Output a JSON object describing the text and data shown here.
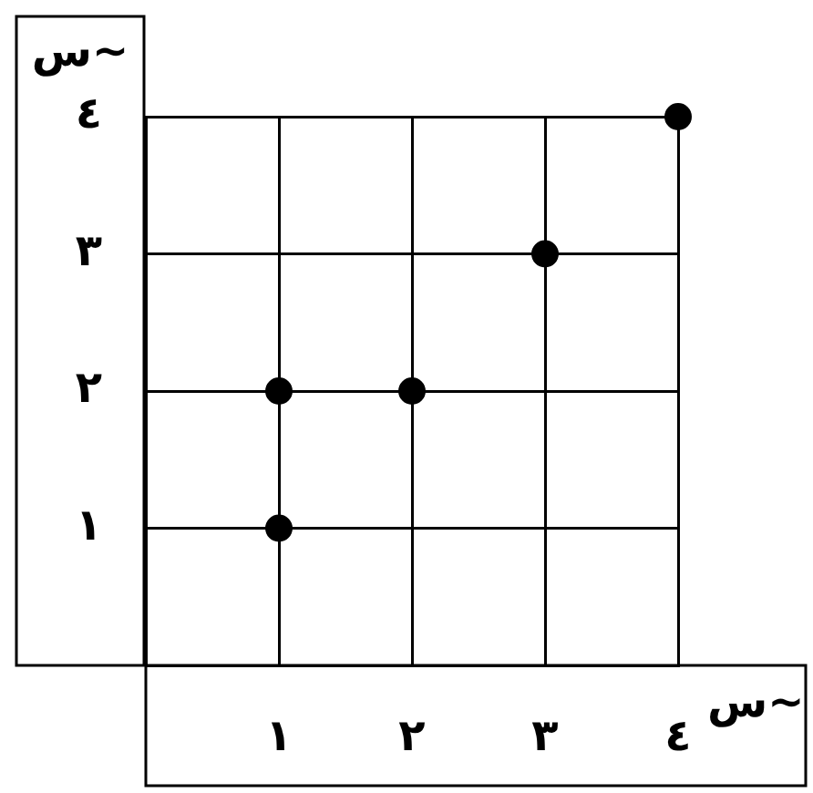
{
  "chart_data": {
    "type": "scatter",
    "xlabel": "س~",
    "ylabel": "س~",
    "x": [
      1,
      1,
      2,
      3,
      4
    ],
    "values": [
      1,
      2,
      2,
      3,
      4
    ],
    "color": "#000000",
    "marker": "circle",
    "xlim": [
      0,
      4
    ],
    "ylim": [
      0,
      4
    ],
    "xticks": [
      {
        "value": 0,
        "label": null
      },
      {
        "value": 1,
        "label": "١"
      },
      {
        "value": 2,
        "label": "٢"
      },
      {
        "value": 3,
        "label": "٣"
      },
      {
        "value": 4,
        "label": "٤"
      }
    ],
    "yticks": [
      {
        "value": 0,
        "label": null
      },
      {
        "value": 1,
        "label": "١"
      },
      {
        "value": 2,
        "label": "٢"
      },
      {
        "value": 3,
        "label": "٣"
      },
      {
        "value": 4,
        "label": "٤"
      }
    ],
    "grid": true,
    "legend": false
  }
}
